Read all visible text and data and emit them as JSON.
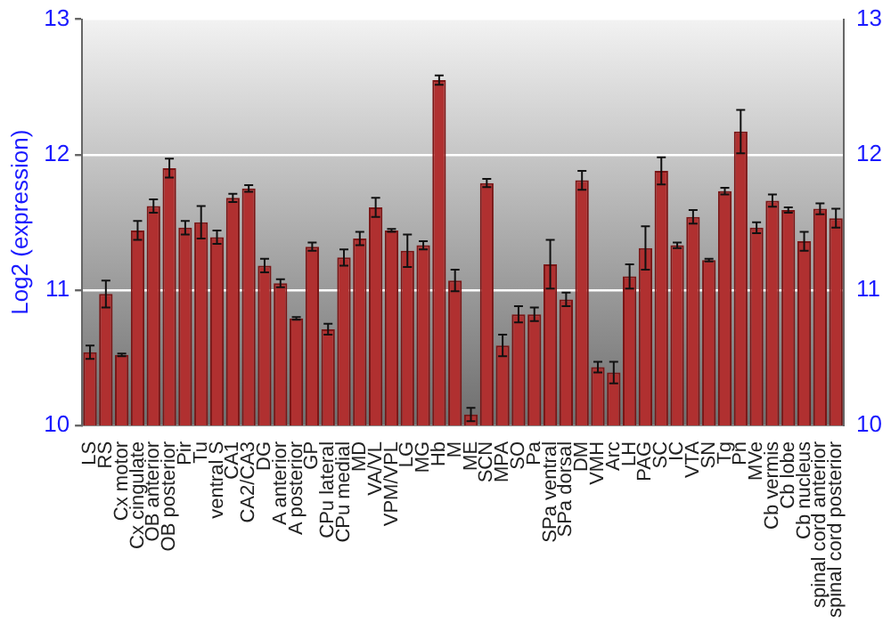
{
  "chart_data": {
    "type": "bar",
    "ylabel": "Log2 (expression)",
    "categories": [
      "LS",
      "RS",
      "Cx motor",
      "Cx cingulate",
      "OB anterior",
      "OB posterior",
      "Pir",
      "Tu",
      "ventral S",
      "CA1",
      "CA2/CA3",
      "DG",
      "A anterior",
      "A posterior",
      "GP",
      "CPu lateral",
      "CPu medial",
      "MD",
      "VA/VL",
      "VPM/VPL",
      "LG",
      "MG",
      "Hb",
      "M",
      "ME",
      "SCN",
      "MPA",
      "SO",
      "Pa",
      "SPa ventral",
      "SPa dorsal",
      "DM",
      "VMH",
      "Arc",
      "LH",
      "PAG",
      "SC",
      "IC",
      "VTA",
      "SN",
      "Tg",
      "Pn",
      "MVe",
      "Cb vermis",
      "Cb lobe",
      "Cb nucleus",
      "spinal cord anterior",
      "spinal cord posterior"
    ],
    "values": [
      10.54,
      10.97,
      10.52,
      11.44,
      11.62,
      11.9,
      11.46,
      11.5,
      11.39,
      11.68,
      11.75,
      11.18,
      11.05,
      10.79,
      11.32,
      10.71,
      11.24,
      11.38,
      11.61,
      11.44,
      11.29,
      11.33,
      12.55,
      11.07,
      10.08,
      11.79,
      10.59,
      10.82,
      10.82,
      11.19,
      10.93,
      11.81,
      10.43,
      10.39,
      11.1,
      11.31,
      11.88,
      11.33,
      11.54,
      11.22,
      11.73,
      12.17,
      11.46,
      11.66,
      11.59,
      11.36,
      11.6,
      11.53
    ],
    "errors": [
      0.05,
      0.1,
      0.01,
      0.07,
      0.05,
      0.07,
      0.05,
      0.12,
      0.05,
      0.03,
      0.025,
      0.05,
      0.03,
      0.01,
      0.03,
      0.04,
      0.06,
      0.05,
      0.07,
      0.01,
      0.12,
      0.03,
      0.035,
      0.08,
      0.05,
      0.03,
      0.08,
      0.06,
      0.05,
      0.18,
      0.05,
      0.07,
      0.04,
      0.08,
      0.09,
      0.16,
      0.1,
      0.02,
      0.05,
      0.01,
      0.025,
      0.16,
      0.04,
      0.045,
      0.02,
      0.07,
      0.04,
      0.07
    ],
    "color": "#b03030",
    "ylim": [
      10,
      13
    ],
    "yticks": [
      10,
      11,
      12,
      13
    ],
    "y2lim": [
      10,
      13
    ],
    "y2ticks": [
      10,
      11,
      12,
      13
    ],
    "grid": "y"
  }
}
